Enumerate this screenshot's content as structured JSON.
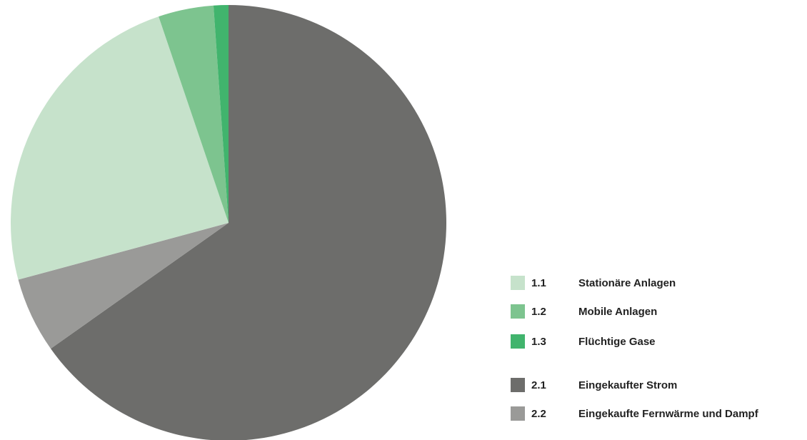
{
  "chart_data": {
    "type": "pie",
    "title": "",
    "legend_position": "bottom-right",
    "slices": [
      {
        "code": "1.1",
        "label": "Stationäre Anlagen",
        "value": 24.0,
        "color": "#c6e2cb"
      },
      {
        "code": "1.2",
        "label": "Mobile Anlagen",
        "value": 4.1,
        "color": "#7dc48f"
      },
      {
        "code": "1.3",
        "label": "Flüchtige Gase",
        "value": 1.1,
        "color": "#41b46d"
      },
      {
        "code": "2.1",
        "label": "Eingekaufter Strom",
        "value": 65.2,
        "color": "#6d6d6b"
      },
      {
        "code": "2.2",
        "label": "Eingekaufte Fernwärme und Dampf",
        "value": 5.6,
        "color": "#9a9a98"
      }
    ],
    "legend_groups": [
      [
        "1.1",
        "1.2",
        "1.3"
      ],
      [
        "2.1",
        "2.2"
      ]
    ]
  }
}
